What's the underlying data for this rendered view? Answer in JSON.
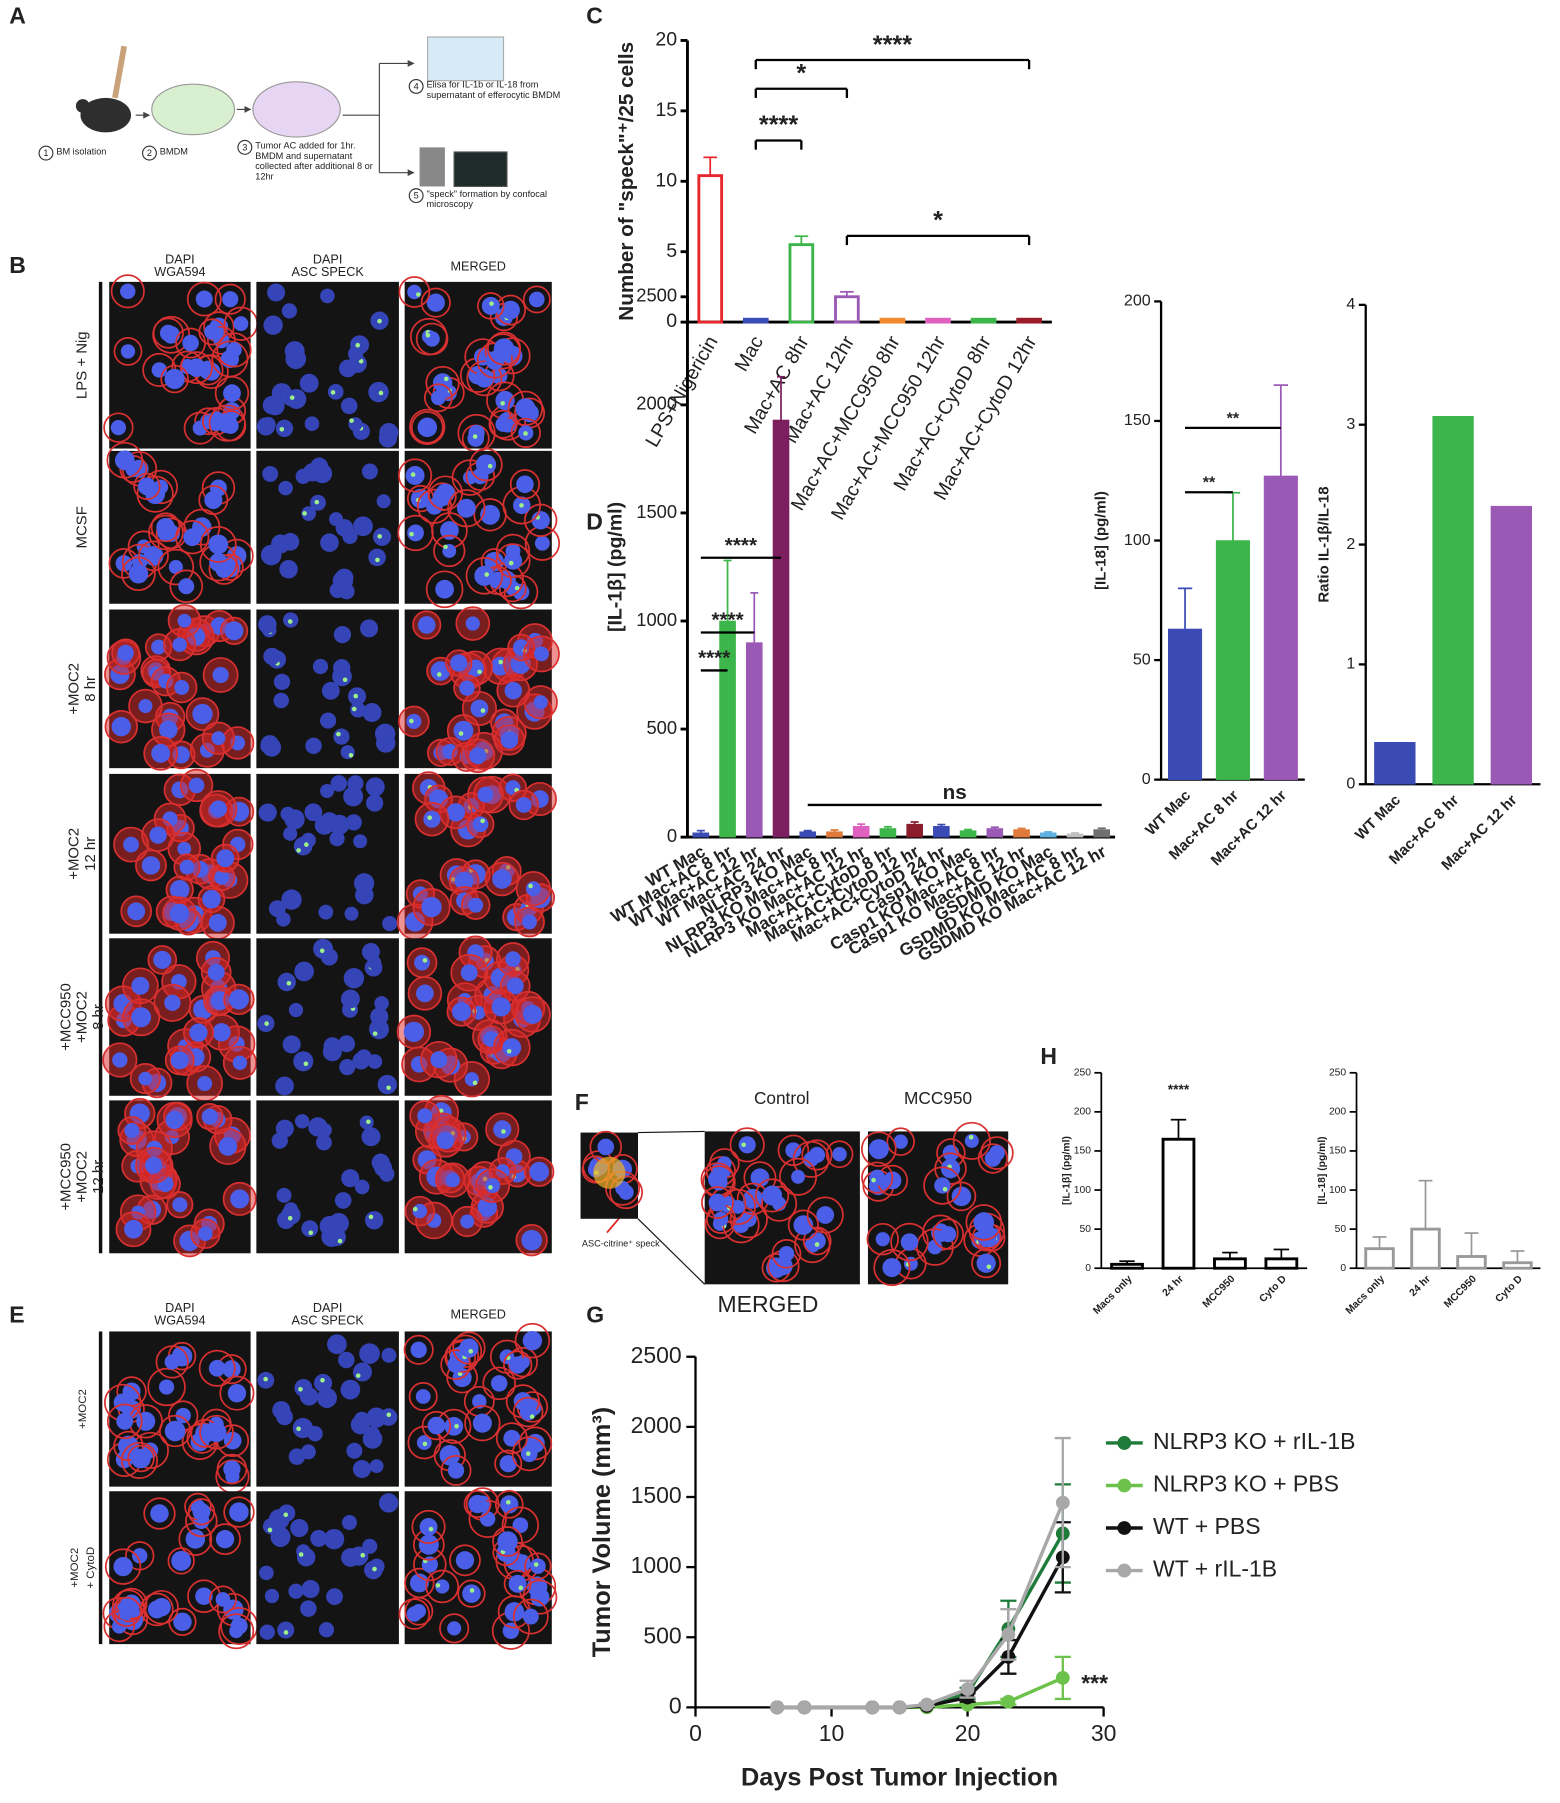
{
  "figure": {
    "panel_letters": [
      "A",
      "B",
      "C",
      "D",
      "E",
      "F",
      "G",
      "H"
    ],
    "schematic": {
      "numbers": [
        "1",
        "2",
        "3",
        "4",
        "5"
      ],
      "steps": [
        "BM isolation",
        "BMDM",
        "Tumor AC added for 1hr. BMDM and supernatant collected after additional 8 or 12hr",
        "Elisa for IL-1b or IL-18 from supernatant of efferocytic BMDM",
        "\"speck\" formation by confocal microscopy"
      ]
    },
    "panel_b": {
      "columns": [
        [
          "DAPI",
          "WGA594"
        ],
        [
          "DAPI",
          "ASC SPECK"
        ],
        [
          "MERGED"
        ]
      ],
      "rows": [
        [
          "LPS + Nig"
        ],
        [
          "MCSF"
        ],
        [
          "+MOC2",
          "8 hr"
        ],
        [
          "+MOC2",
          "12 hr"
        ],
        [
          "+MCC950",
          "+MOC2",
          "8 hr"
        ],
        [
          "+MCC950",
          "+MOC2",
          "12 hr"
        ]
      ]
    },
    "panel_e": {
      "columns": [
        [
          "DAPI",
          "WGA594"
        ],
        [
          "DAPI",
          "ASC SPECK"
        ],
        [
          "MERGED"
        ]
      ],
      "rows": [
        [
          "+MOC2"
        ],
        [
          "+MOC2",
          "+ CytoD"
        ]
      ]
    },
    "panel_f": {
      "columns": [
        "Control",
        "MCC950"
      ],
      "inset_label": "ASC-citrine⁺ speck",
      "merged_label": "MERGED"
    }
  },
  "chart_data": [
    {
      "type": "bar",
      "ylabel": "Number of \"speck\"⁺/25 cells",
      "categories": [
        "LPS+Nigericin",
        "Mac",
        "Mac+AC 8hr",
        "Mac+AC 12hr",
        "Mac+AC+MCC950 8hr",
        "Mac+AC+MCC950 12hr",
        "Mac+AC+CytoD 8hr",
        "Mac+AC+CytoD 12hr"
      ],
      "values": [
        10.4,
        0,
        5.5,
        1.8,
        0,
        0,
        0,
        0
      ],
      "errors": [
        1.3,
        0,
        0.6,
        0.35,
        0,
        0,
        0,
        0
      ],
      "colors": [
        "#e8262b",
        "#3b4bb5",
        "#3cb54a",
        "#9b59b6",
        "#f08a2c",
        "#e060c0",
        "#3cb54a",
        "#9b1d2a"
      ],
      "bar_fill": "none",
      "ylim": [
        0,
        20
      ],
      "yticks": [
        0,
        5,
        10,
        15,
        20
      ],
      "annotations": [
        "****",
        "*",
        "****",
        "*"
      ]
    },
    {
      "type": "bar",
      "ylabel": "[IL-1β] (pg/ml)",
      "categories": [
        "WT Mac",
        "WT Mac+AC 8 hr",
        "WT Mac+AC 12 hr",
        "WT Mac+AC 24 hr",
        "NLRP3 KO Mac",
        "NLRP3 KO Mac+AC 8 hr",
        "NLRP3 KO Mac+AC 12 hr",
        "Mac+AC+CytoD 8 hr",
        "Mac+AC+CytoD 12 hr",
        "Mac+AC+CytoD 24 hr",
        "Casp1 KO Mac",
        "Casp1 KO Mac+AC 8 hr",
        "Casp1 KO Mac+AC 12 hr",
        "GSDMD KO Mac",
        "GSDMD KO Mac+AC 8 hr",
        "GSDMD KO Mac+AC 12 hr"
      ],
      "values": [
        20,
        1000,
        900,
        1930,
        25,
        25,
        50,
        40,
        60,
        50,
        30,
        40,
        35,
        20,
        15,
        35
      ],
      "errors": [
        10,
        280,
        230,
        200,
        5,
        8,
        10,
        8,
        10,
        8,
        5,
        6,
        5,
        4,
        4,
        6
      ],
      "colors": [
        "#3b4bb5",
        "#3cb54a",
        "#9b59b6",
        "#7b1f5f",
        "#3b4bb5",
        "#e07a3a",
        "#e060c0",
        "#3cb54a",
        "#8b1c2c",
        "#3b4bb5",
        "#3cb54a",
        "#9b59b6",
        "#e07a3a",
        "#5fb0e0",
        "#c0c0c0",
        "#707070"
      ],
      "ylim": [
        0,
        2500
      ],
      "yticks": [
        0,
        500,
        1000,
        1500,
        2000,
        2500
      ],
      "annotations": [
        "****",
        "****",
        "****",
        "ns"
      ]
    },
    {
      "type": "bar",
      "ylabel": "[IL-18] (pg/ml)",
      "categories": [
        "WT Mac",
        "Mac+AC 8 hr",
        "Mac+AC 12 hr"
      ],
      "values": [
        63,
        100,
        127
      ],
      "errors": [
        17,
        20,
        38
      ],
      "colors": [
        "#3b4bb5",
        "#3cb54a",
        "#9b59b6"
      ],
      "ylim": [
        0,
        200
      ],
      "yticks": [
        0,
        50,
        100,
        150,
        200
      ],
      "annotations": [
        "**",
        "**"
      ]
    },
    {
      "type": "bar",
      "ylabel": "Ratio IL-1β/IL-18",
      "categories": [
        "WT Mac",
        "Mac+AC 8 hr",
        "Mac+AC 12 hr"
      ],
      "values": [
        0.35,
        3.07,
        2.32
      ],
      "colors": [
        "#3b4bb5",
        "#3cb54a",
        "#9b59b6"
      ],
      "ylim": [
        0,
        4
      ],
      "yticks": [
        0,
        1,
        2,
        3,
        4
      ]
    },
    {
      "type": "bar",
      "ylabel": "[IL-1β] (pg/ml)",
      "categories": [
        "Macs only",
        "24 hr",
        "MCC950",
        "Cyto D"
      ],
      "values": [
        5,
        165,
        12,
        12
      ],
      "errors": [
        4,
        25,
        8,
        12
      ],
      "color": "#000000",
      "bar_fill": "none",
      "ylim": [
        0,
        250
      ],
      "yticks": [
        0,
        50,
        100,
        150,
        200,
        250
      ],
      "annotations": [
        "****"
      ]
    },
    {
      "type": "bar",
      "ylabel": "[IL-18] (pg/ml)",
      "categories": [
        "Macs only",
        "24 hr",
        "MCC950",
        "Cyto D"
      ],
      "values": [
        25,
        50,
        15,
        7
      ],
      "errors": [
        15,
        62,
        30,
        15
      ],
      "color": "#999999",
      "bar_fill": "none",
      "ylim": [
        0,
        250
      ],
      "yticks": [
        0,
        50,
        100,
        150,
        200,
        250
      ]
    },
    {
      "type": "line",
      "xlabel": "Days Post Tumor Injection",
      "ylabel": "Tumor Volume (mm³)",
      "x": [
        6,
        8,
        13,
        15,
        17,
        20,
        23,
        27
      ],
      "series": [
        {
          "name": "NLRP3 KO + rIL-1B",
          "color": "#1e7b3a",
          "values": [
            0,
            0,
            0,
            0,
            10,
            100,
            560,
            1240
          ],
          "errors": [
            0,
            0,
            0,
            0,
            5,
            40,
            200,
            350
          ]
        },
        {
          "name": "NLRP3 KO + PBS",
          "color": "#6cc24a",
          "values": [
            0,
            0,
            0,
            0,
            0,
            20,
            40,
            210
          ],
          "errors": [
            0,
            0,
            0,
            0,
            0,
            10,
            20,
            150
          ]
        },
        {
          "name": "WT + PBS",
          "color": "#111111",
          "values": [
            0,
            0,
            0,
            0,
            10,
            70,
            360,
            1070
          ],
          "errors": [
            0,
            0,
            0,
            0,
            5,
            30,
            120,
            250
          ]
        },
        {
          "name": "WT + rIL-1B",
          "color": "#a8a8a8",
          "values": [
            0,
            0,
            0,
            0,
            20,
            130,
            520,
            1460
          ],
          "errors": [
            0,
            0,
            0,
            0,
            10,
            60,
            180,
            460
          ]
        }
      ],
      "xlim": [
        0,
        30
      ],
      "xticks": [
        0,
        10,
        20,
        30
      ],
      "ylim": [
        0,
        2500
      ],
      "yticks": [
        0,
        500,
        1000,
        1500,
        2000,
        2500
      ],
      "annotations": [
        "***"
      ]
    }
  ]
}
